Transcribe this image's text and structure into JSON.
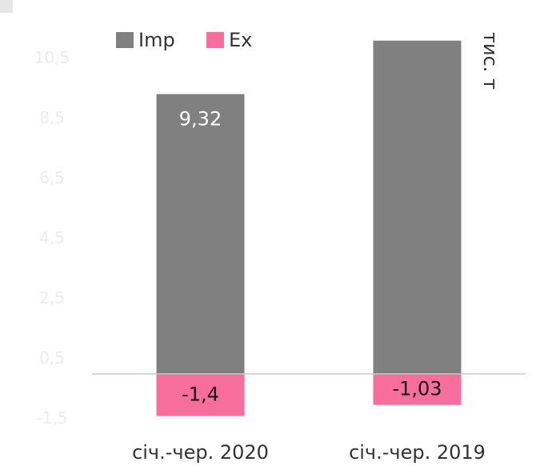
{
  "chart_data": {
    "type": "bar",
    "unit_label": "тис. т",
    "categories": [
      "січ.-чер. 2020",
      "січ.-чер. 2019"
    ],
    "series": [
      {
        "name": "Imp",
        "color": "#808080",
        "values": [
          9.32,
          11.1
        ],
        "value_labels": [
          "9,32",
          null
        ]
      },
      {
        "name": "Ex",
        "color": "#f76e9c",
        "values": [
          -1.4,
          -1.03
        ],
        "value_labels": [
          "-1,4",
          "-1,03"
        ]
      }
    ],
    "ylim": [
      -2,
      12
    ],
    "yticks": [
      {
        "value": 10.5,
        "label": "10,5"
      },
      {
        "value": 8.5,
        "label": "8,5"
      },
      {
        "value": 6.5,
        "label": "6,5"
      },
      {
        "value": 4.5,
        "label": "4,5"
      },
      {
        "value": 2.5,
        "label": "2,5"
      },
      {
        "value": 0.5,
        "label": "0,5"
      },
      {
        "value": -1.5,
        "label": "-1,5"
      }
    ],
    "grid": false,
    "legend": "top"
  }
}
